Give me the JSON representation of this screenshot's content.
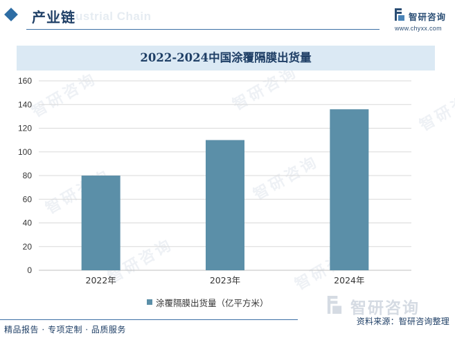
{
  "header": {
    "section_title": "产业链",
    "ghost_text": "Industrial Chain",
    "brand_name": "智研咨询",
    "brand_url": "www.chyxx.com"
  },
  "watermark": {
    "text": "智研咨询"
  },
  "colors": {
    "bar": "#5b8fa8",
    "accent": "#1f3f66",
    "title_bg": "#dbe9f4"
  },
  "chart_data": {
    "type": "bar",
    "title": "2022-2024中国涂覆隔膜出货量",
    "categories": [
      "2022年",
      "2023年",
      "2024年"
    ],
    "series": [
      {
        "name": "涂覆隔膜出货量（亿平方米）",
        "values": [
          80,
          110,
          136
        ]
      }
    ],
    "ylim": [
      0,
      160
    ],
    "yticks": [
      0,
      20,
      40,
      60,
      80,
      100,
      120,
      140,
      160
    ],
    "grid": true,
    "legend_position": "bottom"
  },
  "footer": {
    "left_text": "精品报告 · 专项定制 · 品质服务",
    "right_text": "资料来源：智研咨询整理",
    "logo_text": "智研咨询"
  }
}
